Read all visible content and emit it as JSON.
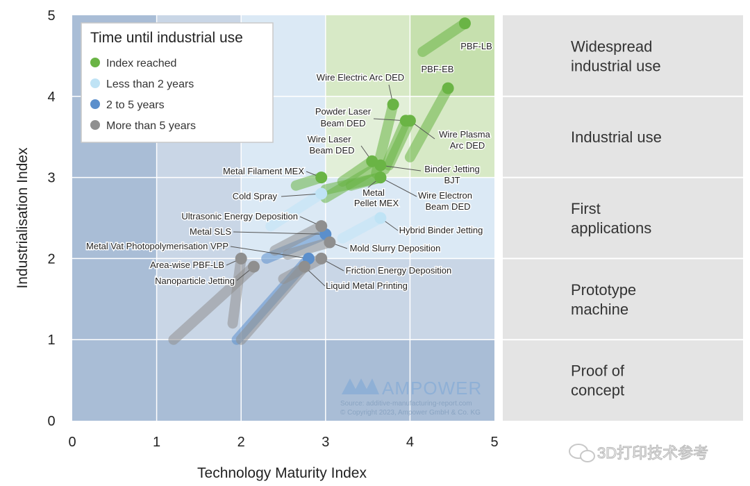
{
  "chart_data": {
    "type": "scatter",
    "title": "",
    "xlabel": "Technology Maturity Index",
    "ylabel": "Industrialisation Index",
    "xlim": [
      0,
      5
    ],
    "ylim": [
      0,
      5
    ],
    "x_ticks": [
      "0",
      "1",
      "2",
      "3",
      "4",
      "5"
    ],
    "y_ticks": [
      "0",
      "1",
      "2",
      "3",
      "4",
      "5"
    ],
    "legend": {
      "title": "Time until industrial use",
      "position": "top-left",
      "items": [
        {
          "label": "Index reached",
          "color": "#6ab445"
        },
        {
          "label": "Less than 2 years",
          "color": "#bfe3f5"
        },
        {
          "label": "2 to 5 years",
          "color": "#5b8fcc"
        },
        {
          "label": "More than 5 years",
          "color": "#8f8f8f"
        }
      ]
    },
    "stages": [
      {
        "label": "Widespread industrial use",
        "line1": "Widespread",
        "line2": "industrial use"
      },
      {
        "label": "Industrial use",
        "line1": "Industrial use",
        "line2": ""
      },
      {
        "label": "First applications",
        "line1": "First",
        "line2": "applications"
      },
      {
        "label": "Prototype machine",
        "line1": "Prototype",
        "line2": "machine"
      },
      {
        "label": "Proof of concept",
        "line1": "Proof of",
        "line2": "concept"
      }
    ],
    "series": [
      {
        "name": "PBF-LB",
        "category": "Index reached",
        "x": 4.65,
        "y": 4.9,
        "x_prev": 4.15,
        "y_prev": 4.55
      },
      {
        "name": "PBF-EB",
        "category": "Index reached",
        "x": 4.45,
        "y": 4.1,
        "x_prev": 4.0,
        "y_prev": 3.25
      },
      {
        "name": "Wire Electric Arc DED",
        "category": "Index reached",
        "x": 3.8,
        "y": 3.9,
        "x_prev": 3.6,
        "y_prev": 3.05
      },
      {
        "name": "Powder Laser Beam DED",
        "category": "Index reached",
        "x": 3.95,
        "y": 3.7,
        "x_prev": 3.7,
        "y_prev": 3.1
      },
      {
        "name": "Wire Plasma Arc DED",
        "category": "Index reached",
        "x": 4.0,
        "y": 3.7,
        "x_prev": 3.75,
        "y_prev": 3.15
      },
      {
        "name": "Wire Laser Beam DED",
        "category": "Index reached",
        "x": 3.55,
        "y": 3.2,
        "x_prev": 3.2,
        "y_prev": 2.95
      },
      {
        "name": "Binder Jetting BJT",
        "category": "Index reached",
        "x": 3.65,
        "y": 3.15,
        "x_prev": 3.0,
        "y_prev": 2.75
      },
      {
        "name": "Metal Filament MEX",
        "category": "Index reached",
        "x": 2.95,
        "y": 3.0,
        "x_prev": 2.65,
        "y_prev": 2.9
      },
      {
        "name": "Metal Pellet MEX",
        "category": "Index reached",
        "x": 3.65,
        "y": 3.0,
        "x_prev": 3.0,
        "y_prev": 2.85
      },
      {
        "name": "Wire Electron Beam DED",
        "category": "Index reached",
        "x": 3.65,
        "y": 3.0,
        "x_prev": 3.3,
        "y_prev": 2.9
      },
      {
        "name": "Cold Spray",
        "category": "Less than 2 years",
        "x": 2.95,
        "y": 2.8,
        "x_prev": 2.35,
        "y_prev": 2.4
      },
      {
        "name": "Hybrid Binder Jetting",
        "category": "Less than 2 years",
        "x": 3.65,
        "y": 2.5,
        "x_prev": 3.2,
        "y_prev": 2.25
      },
      {
        "name": "Metal SLS",
        "category": "2 to 5 years",
        "x": 3.0,
        "y": 2.3,
        "x_prev": 2.3,
        "y_prev": 2.0
      },
      {
        "name": "Ultrasonic Energy Deposition",
        "category": "More than 5 years",
        "x": 2.95,
        "y": 2.4,
        "x_prev": 2.4,
        "y_prev": 2.1
      },
      {
        "name": "Mold Slurry Deposition",
        "category": "More than 5 years",
        "x": 3.05,
        "y": 2.2,
        "x_prev": 2.55,
        "y_prev": 2.05
      },
      {
        "name": "Metal Vat Photopolymerisation VPP",
        "category": "2 to 5 years",
        "x": 2.8,
        "y": 2.0,
        "x_prev": 1.95,
        "y_prev": 1.0
      },
      {
        "name": "Area-wise PBF-LB",
        "category": "More than 5 years",
        "x": 2.0,
        "y": 2.0,
        "x_prev": 1.9,
        "y_prev": 1.2
      },
      {
        "name": "Nanoparticle Jetting",
        "category": "More than 5 years",
        "x": 2.15,
        "y": 1.9,
        "x_prev": 1.2,
        "y_prev": 1.0
      },
      {
        "name": "Friction Energy Deposition",
        "category": "More than 5 years",
        "x": 2.95,
        "y": 2.0,
        "x_prev": 2.5,
        "y_prev": 1.75
      },
      {
        "name": "Liquid Metal Printing",
        "category": "More than 5 years",
        "x": 2.75,
        "y": 1.9,
        "x_prev": 2.0,
        "y_prev": 1.0
      }
    ],
    "annotations": {
      "brand": "AMPOWER",
      "source": "Source: additive-manufacturing-report.com",
      "copyright": "© Copyright 2023, Ampower GmbH & Co. KG"
    }
  },
  "watermark": {
    "text": "3D打印技术参考",
    "icon": "wechat-icon"
  }
}
